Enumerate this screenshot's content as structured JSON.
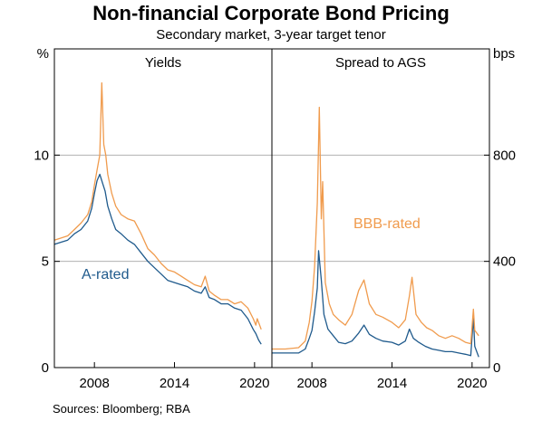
{
  "title": "Non-financial Corporate Bond Pricing",
  "subtitle": "Secondary market, 3-year target tenor",
  "source": "Sources:  Bloomberg; RBA",
  "chart_data": [
    {
      "type": "line",
      "panel_title": "Yields",
      "ylabel": "%",
      "ylim": [
        0,
        15
      ],
      "yticks": [
        0,
        5,
        10
      ],
      "xlim": [
        2005,
        2021.3
      ],
      "xticks": [
        2008,
        2014,
        2020
      ],
      "grid": true,
      "series": [
        {
          "name": "A-rated",
          "color": "#1f5a8c",
          "x": [
            2005.0,
            2005.5,
            2006.0,
            2006.5,
            2007.0,
            2007.5,
            2007.8,
            2008.0,
            2008.2,
            2008.4,
            2008.6,
            2008.8,
            2009.0,
            2009.3,
            2009.6,
            2010.0,
            2010.5,
            2011.0,
            2011.5,
            2012.0,
            2012.5,
            2013.0,
            2013.5,
            2014.0,
            2014.5,
            2015.0,
            2015.5,
            2016.0,
            2016.3,
            2016.6,
            2017.0,
            2017.5,
            2018.0,
            2018.5,
            2019.0,
            2019.5,
            2019.9,
            2020.1,
            2020.3,
            2020.5
          ],
          "values": [
            5.8,
            5.9,
            6.0,
            6.3,
            6.5,
            6.9,
            7.5,
            8.2,
            8.8,
            9.1,
            8.7,
            8.3,
            7.6,
            7.0,
            6.5,
            6.3,
            6.0,
            5.8,
            5.4,
            5.0,
            4.7,
            4.4,
            4.1,
            4.0,
            3.9,
            3.8,
            3.6,
            3.5,
            3.8,
            3.3,
            3.2,
            3.0,
            3.0,
            2.8,
            2.7,
            2.3,
            1.8,
            1.6,
            1.3,
            1.1
          ]
        },
        {
          "name": "BBB-rated",
          "color": "#f09b4d",
          "x": [
            2005.0,
            2005.5,
            2006.0,
            2006.5,
            2007.0,
            2007.5,
            2007.8,
            2008.0,
            2008.2,
            2008.4,
            2008.55,
            2008.7,
            2008.85,
            2009.0,
            2009.3,
            2009.6,
            2010.0,
            2010.5,
            2011.0,
            2011.5,
            2012.0,
            2012.5,
            2013.0,
            2013.5,
            2014.0,
            2014.5,
            2015.0,
            2015.5,
            2016.0,
            2016.3,
            2016.6,
            2017.0,
            2017.5,
            2018.0,
            2018.5,
            2019.0,
            2019.5,
            2019.9,
            2020.1,
            2020.2,
            2020.5
          ],
          "values": [
            6.0,
            6.1,
            6.2,
            6.5,
            6.8,
            7.2,
            7.8,
            8.6,
            9.3,
            10.0,
            13.4,
            10.5,
            10.0,
            9.1,
            8.2,
            7.6,
            7.2,
            7.0,
            6.9,
            6.3,
            5.6,
            5.3,
            4.9,
            4.6,
            4.5,
            4.3,
            4.1,
            3.9,
            3.8,
            4.3,
            3.6,
            3.4,
            3.2,
            3.2,
            3.0,
            3.1,
            2.8,
            2.3,
            2.0,
            2.3,
            1.8
          ]
        }
      ]
    },
    {
      "type": "line",
      "panel_title": "Spread to AGS",
      "ylabel": "bps",
      "ylim": [
        0,
        1200
      ],
      "yticks": [
        0,
        400,
        800
      ],
      "xlim": [
        2005,
        2021.3
      ],
      "xticks": [
        2008,
        2014,
        2020
      ],
      "grid": true,
      "series": [
        {
          "name": "A-rated",
          "color": "#1f5a8c",
          "x": [
            2005.0,
            2006.0,
            2007.0,
            2007.5,
            2007.8,
            2008.0,
            2008.2,
            2008.4,
            2008.5,
            2008.7,
            2008.9,
            2009.2,
            2009.6,
            2010.0,
            2010.5,
            2011.0,
            2011.5,
            2011.9,
            2012.3,
            2012.8,
            2013.3,
            2014.0,
            2014.5,
            2015.0,
            2015.3,
            2015.6,
            2016.0,
            2016.5,
            2017.0,
            2017.5,
            2018.0,
            2018.5,
            2019.0,
            2019.5,
            2019.9,
            2020.1,
            2020.2,
            2020.5
          ],
          "values": [
            55,
            55,
            55,
            70,
            110,
            140,
            210,
            300,
            440,
            330,
            200,
            145,
            120,
            95,
            90,
            100,
            130,
            160,
            125,
            110,
            100,
            95,
            85,
            100,
            145,
            110,
            95,
            80,
            70,
            65,
            60,
            60,
            55,
            50,
            45,
            190,
            80,
            40
          ]
        },
        {
          "name": "BBB-rated",
          "color": "#f09b4d",
          "x": [
            2005.0,
            2006.0,
            2007.0,
            2007.5,
            2007.8,
            2008.0,
            2008.2,
            2008.4,
            2008.55,
            2008.7,
            2008.8,
            2009.0,
            2009.3,
            2009.6,
            2010.0,
            2010.5,
            2011.0,
            2011.5,
            2011.9,
            2012.3,
            2012.8,
            2013.3,
            2014.0,
            2014.5,
            2015.0,
            2015.3,
            2015.5,
            2015.8,
            2016.2,
            2016.6,
            2017.0,
            2017.5,
            2018.0,
            2018.5,
            2019.0,
            2019.5,
            2019.9,
            2020.1,
            2020.2,
            2020.5
          ],
          "values": [
            70,
            70,
            75,
            100,
            170,
            250,
            380,
            620,
            980,
            560,
            700,
            320,
            240,
            200,
            180,
            160,
            200,
            290,
            330,
            240,
            200,
            190,
            170,
            150,
            180,
            270,
            340,
            200,
            170,
            150,
            140,
            120,
            110,
            120,
            110,
            95,
            90,
            220,
            140,
            120
          ]
        }
      ]
    }
  ],
  "annotations": {
    "a_rated": "A-rated",
    "bbb_rated": "BBB-rated"
  }
}
